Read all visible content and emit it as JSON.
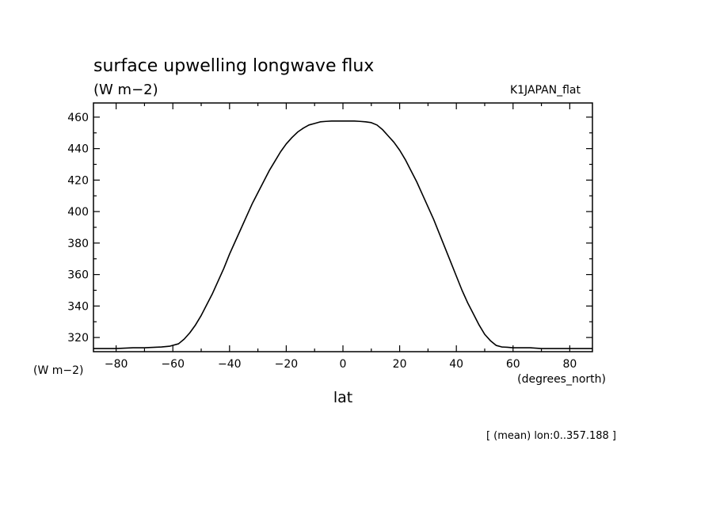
{
  "chart_data": {
    "type": "line",
    "title": "surface upwelling longwave flux",
    "units": "(W m−2)",
    "dataset": "K1JAPAN_flat",
    "ylabel": "(W m−2)",
    "xlabel": "lat",
    "xunits": "(degrees_north)",
    "footnote": "[ (mean) lon:0..357.188 ]",
    "xlim": [
      -88,
      88
    ],
    "ylim": [
      311,
      469
    ],
    "xticks": [
      -80,
      -60,
      -40,
      -20,
      0,
      20,
      40,
      60,
      80
    ],
    "xtick_labels": [
      "−80",
      "−60",
      "−40",
      "−20",
      "0",
      "20",
      "40",
      "60",
      "80"
    ],
    "yticks": [
      320,
      340,
      360,
      380,
      400,
      420,
      440,
      460
    ],
    "ytick_labels": [
      "320",
      "340",
      "360",
      "380",
      "400",
      "420",
      "440",
      "460"
    ],
    "grid": false,
    "series": [
      {
        "x": [
          -88,
          -80,
          -74,
          -70,
          -64,
          -61,
          -58,
          -56,
          -54,
          -52,
          -50,
          -48,
          -46,
          -44,
          -42,
          -40,
          -38,
          -36,
          -34,
          -32,
          -30,
          -28,
          -26,
          -24,
          -22,
          -20,
          -18,
          -16,
          -14,
          -12,
          -10,
          -8,
          -6,
          -4,
          -2,
          0,
          2,
          4,
          6,
          8,
          10,
          12,
          14,
          16,
          18,
          20,
          22,
          24,
          26,
          28,
          30,
          32,
          34,
          36,
          38,
          40,
          42,
          44,
          46,
          48,
          50,
          52,
          54,
          56,
          58,
          60,
          62,
          66,
          70,
          74,
          80,
          88
        ],
        "y": [
          313,
          313,
          313.5,
          313.5,
          314,
          314.5,
          316,
          319,
          323,
          328,
          334,
          341,
          348,
          356,
          364,
          373,
          381,
          389,
          397,
          405,
          412,
          419,
          426,
          432,
          438,
          443,
          447,
          450.5,
          453,
          455,
          456,
          457,
          457.3,
          457.5,
          457.5,
          457.5,
          457.5,
          457.5,
          457.3,
          457,
          456.5,
          455,
          452,
          448,
          444,
          439,
          433,
          426,
          419,
          411,
          403,
          395,
          386,
          377,
          368,
          359,
          350,
          342,
          335,
          328,
          322,
          318,
          315,
          314,
          313.8,
          313.5,
          313.5,
          313.5,
          313,
          313,
          313,
          313
        ]
      }
    ]
  }
}
